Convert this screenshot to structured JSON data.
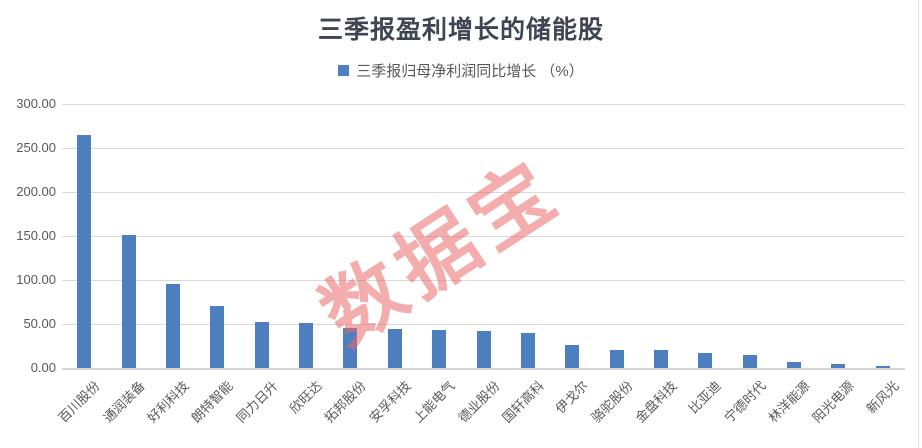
{
  "title": "三季报盈利增长的储能股",
  "legend": {
    "label": "三季报归母净利润同比增长 （%）",
    "swatch_color": "#4D7EBD"
  },
  "watermark": {
    "text": "数据宝",
    "color": "#E96A6A"
  },
  "colors": {
    "bar": "#4D7EBD",
    "title_text": "#3E4653",
    "axis_text": "#595959",
    "gridline": "#D9D9D9",
    "background": "#FFFFFF"
  },
  "chart_data": {
    "type": "bar",
    "title": "三季报盈利增长的储能股",
    "legend": [
      "三季报归母净利润同比增长 （%）"
    ],
    "legend_position": "top",
    "grid": true,
    "xlabel": "",
    "ylabel": "",
    "ylim": [
      0,
      300
    ],
    "ytick_labels": [
      "0.00",
      "50.00",
      "100.00",
      "150.00",
      "200.00",
      "250.00",
      "300.00"
    ],
    "categories": [
      "百川股份",
      "通润装备",
      "好利科技",
      "朗特智能",
      "同力日升",
      "欣旺达",
      "拓邦股份",
      "安孚科技",
      "上能电气",
      "德业股份",
      "国轩高科",
      "伊戈尔",
      "骆驼股份",
      "金盘科技",
      "比亚迪",
      "宁德时代",
      "林洋能源",
      "阳光电源",
      "新风光"
    ],
    "values": [
      265,
      151,
      95,
      70,
      52,
      51,
      45,
      44,
      43,
      42,
      40,
      26,
      21,
      21,
      17,
      14.5,
      7,
      4,
      2
    ]
  }
}
